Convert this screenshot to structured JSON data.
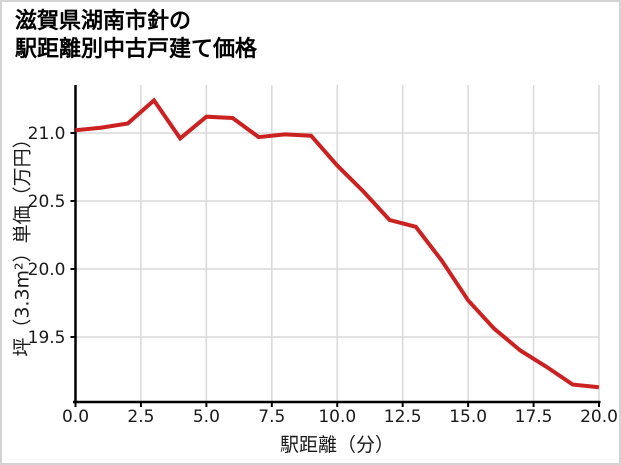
{
  "title": {
    "line1": "滋賀県湖南市針の",
    "line2": "駅距離別中古戸建て価格"
  },
  "chart_data": {
    "type": "line",
    "title": "滋賀県湖南市針の駅距離別中古戸建て価格",
    "xlabel": "駅距離（分）",
    "ylabel": "坪（3.3m²）単価（万円）",
    "x": [
      0,
      1,
      2,
      3,
      4,
      5,
      6,
      7,
      8,
      9,
      10,
      11,
      12,
      13,
      14,
      15,
      16,
      17,
      18,
      19,
      20
    ],
    "values": [
      21.02,
      21.04,
      21.07,
      21.24,
      20.96,
      21.12,
      21.11,
      20.97,
      20.99,
      20.98,
      20.76,
      20.57,
      20.36,
      20.31,
      20.06,
      19.77,
      19.56,
      19.4,
      19.28,
      19.15,
      19.13
    ],
    "x_ticks": [
      0,
      2.5,
      5,
      7.5,
      10,
      12.5,
      15,
      17.5,
      20
    ],
    "x_tick_labels": [
      "0.0",
      "2.5",
      "5.0",
      "7.5",
      "10.0",
      "12.5",
      "15.0",
      "17.5",
      "20.0"
    ],
    "y_ticks": [
      21.0,
      20.5,
      20.0,
      19.5
    ],
    "y_tick_labels": [
      "21.0",
      "20.5",
      "20.0",
      "19.5"
    ],
    "xlim": [
      0,
      20
    ],
    "ylim": [
      19.022,
      21.353
    ],
    "grid": true,
    "legend": "none",
    "line_color": "#cc2121",
    "axis_color": "#000000",
    "grid_color": "#d9d9d9",
    "tick_label_color": "#1a1a1a",
    "background": "#ffffff"
  }
}
